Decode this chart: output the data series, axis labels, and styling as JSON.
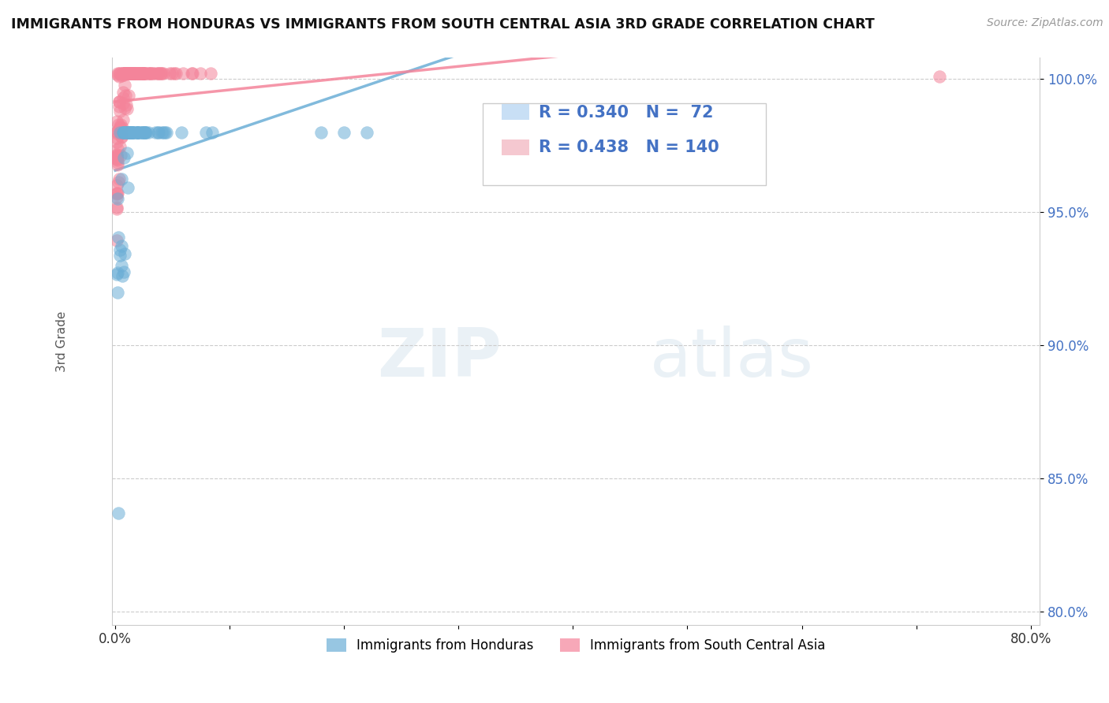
{
  "title": "IMMIGRANTS FROM HONDURAS VS IMMIGRANTS FROM SOUTH CENTRAL ASIA 3RD GRADE CORRELATION CHART",
  "source": "Source: ZipAtlas.com",
  "ylabel": "3rd Grade",
  "ymin": 0.795,
  "ymax": 1.008,
  "xmin": -0.003,
  "xmax": 0.808,
  "yticks": [
    0.8,
    0.85,
    0.9,
    0.95,
    1.0
  ],
  "ytick_labels": [
    "80.0%",
    "85.0%",
    "90.0%",
    "95.0%",
    "100.0%"
  ],
  "series1_color": "#6baed6",
  "series2_color": "#f4849a",
  "series1_label": "Immigrants from Honduras",
  "series2_label": "Immigrants from South Central Asia",
  "R1": 0.34,
  "N1": 72,
  "R2": 0.438,
  "N2": 140,
  "legend_box_color": "#c8dff5",
  "legend_box_color2": "#f5c8d0",
  "watermark_zip": "ZIP",
  "watermark_atlas": "atlas",
  "seed": 123
}
